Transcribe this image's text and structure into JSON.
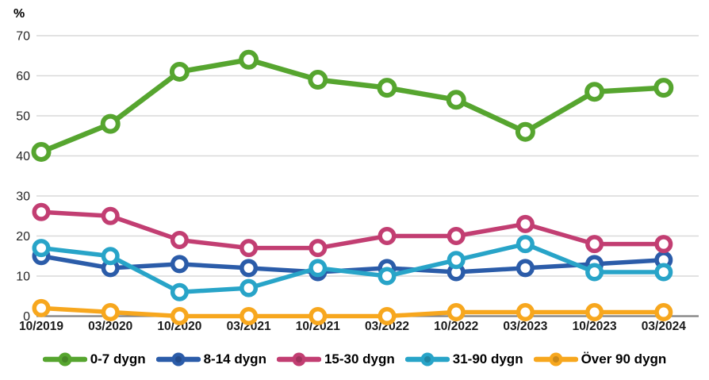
{
  "chart_data": {
    "type": "line",
    "title": "",
    "ylabel": "%",
    "xlabel": "",
    "x": [
      "10/2019",
      "03/2020",
      "10/2020",
      "03/2021",
      "10/2021",
      "03/2022",
      "10/2022",
      "03/2023",
      "10/2023",
      "03/2024"
    ],
    "series": [
      {
        "name": "0-7 dygn",
        "color": "#56A52F",
        "values": [
          41,
          48,
          61,
          64,
          59,
          57,
          54,
          46,
          56,
          57
        ]
      },
      {
        "name": "8-14 dygn",
        "color": "#2B5CA9",
        "values": [
          15,
          12,
          13,
          12,
          11,
          12,
          11,
          12,
          13,
          14
        ]
      },
      {
        "name": "15-30 dygn",
        "color": "#C23E72",
        "values": [
          26,
          25,
          19,
          17,
          17,
          20,
          20,
          23,
          18,
          18
        ]
      },
      {
        "name": "31-90 dygn",
        "color": "#28A4C8",
        "values": [
          17,
          15,
          6,
          7,
          12,
          10,
          14,
          18,
          11,
          11
        ]
      },
      {
        "name": "Över 90 dygn",
        "color": "#F7A71E",
        "values": [
          2,
          1,
          0,
          0,
          0,
          0,
          1,
          1,
          1,
          1
        ]
      }
    ],
    "ylim": [
      0,
      70
    ],
    "yticks": [
      0,
      10,
      20,
      30,
      40,
      50,
      60,
      70
    ],
    "grid": true,
    "legend_position": "bottom",
    "gridline_color": "#D9D9D9",
    "axis_color": "#808080",
    "tick_text_color": "#262626",
    "label_text_color": "#1A1A1A"
  }
}
